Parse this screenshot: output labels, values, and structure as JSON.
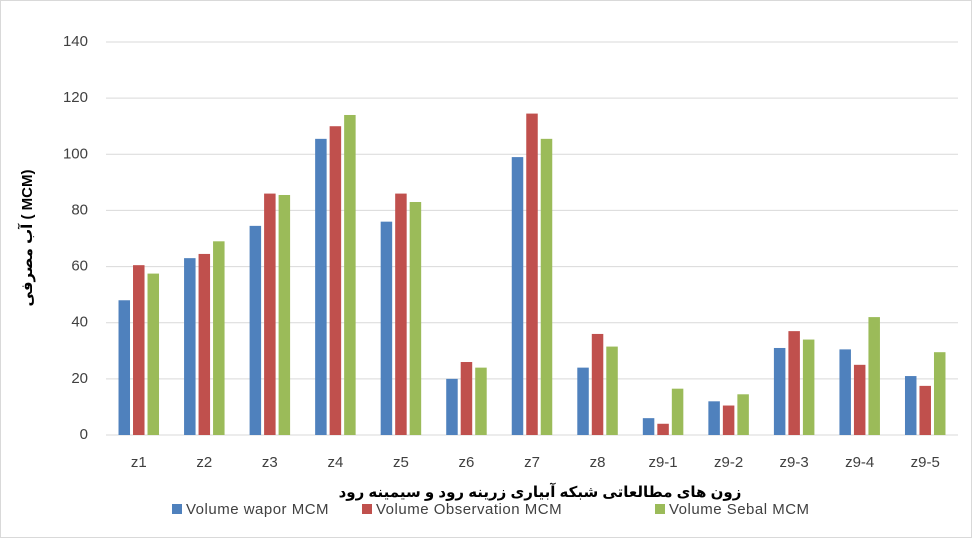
{
  "chart_data": {
    "type": "bar",
    "y_label": "آب مصرفی ( MCM)",
    "x_label": "زون های مطالعاتی شبکه آبیاری زرینه رود و سیمینه رود",
    "categories": [
      "z1",
      "z2",
      "z3",
      "z4",
      "z5",
      "z6",
      "z7",
      "z8",
      "z9-1",
      "z9-2",
      "z9-3",
      "z9-4",
      "z9-5"
    ],
    "series": [
      {
        "name": "Volume wapor MCM",
        "color": "#4f81bd",
        "values": [
          48,
          63,
          74.5,
          105.5,
          76,
          20,
          99,
          24,
          6,
          12,
          31,
          30.5,
          21
        ]
      },
      {
        "name": "Volume Observation MCM",
        "color": "#c0504d",
        "values": [
          60.5,
          64.5,
          86,
          110,
          86,
          26,
          114.5,
          36,
          4,
          10.5,
          37,
          25,
          17.5
        ]
      },
      {
        "name": "Volume Sebal MCM",
        "color": "#9bbb59",
        "values": [
          57.5,
          69,
          85.5,
          114,
          83,
          24,
          105.5,
          31.5,
          16.5,
          14.5,
          34,
          42,
          29.5
        ]
      }
    ],
    "ylim": [
      0,
      140
    ],
    "yticks": [
      0,
      20,
      40,
      60,
      80,
      100,
      120,
      140
    ],
    "grid": true,
    "legend": "bottom"
  }
}
